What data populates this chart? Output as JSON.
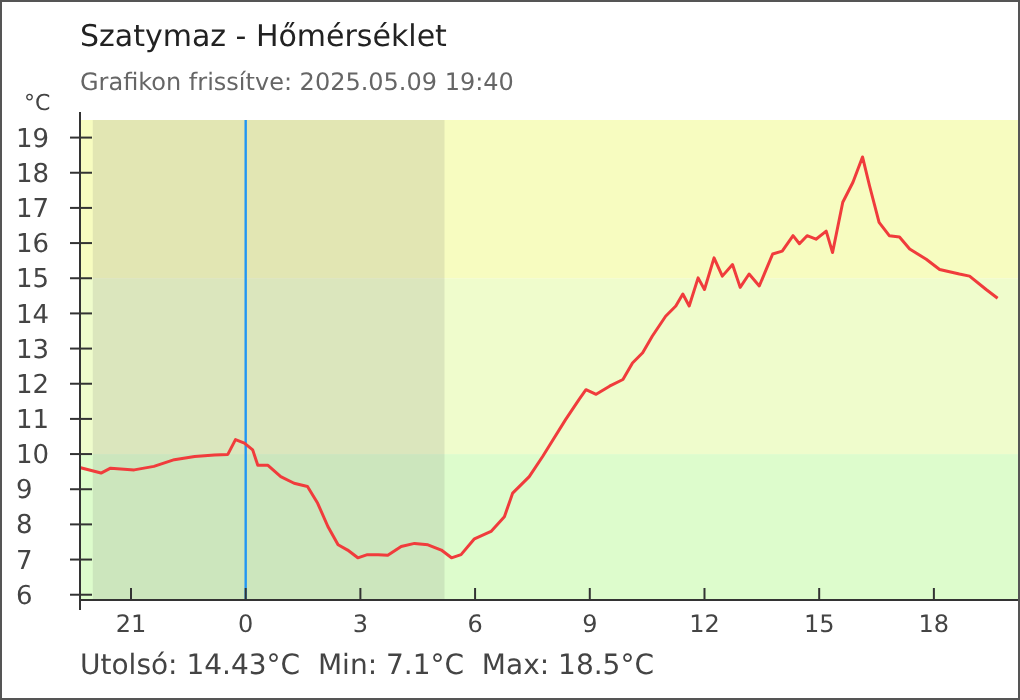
{
  "chart_data": {
    "type": "line",
    "title": "Szatymaz - Hőmérséklet",
    "subtitle": "Grafikon frissítve: 2025.05.09 19:40",
    "ylabel": "°C",
    "annotations": [
      "Utolsó: 14.43°C  Min: 7.1°C  Max: 18.5°C"
    ],
    "xlim": [
      "2025-05-08T19:40",
      "2025-05-09T20:12"
    ],
    "ylim": [
      5.85,
      19.5
    ],
    "xticks": [
      {
        "value": "2025-05-08T21:00",
        "label": "21"
      },
      {
        "value": "2025-05-09T00:00",
        "label": "0"
      },
      {
        "value": "2025-05-09T03:00",
        "label": "3"
      },
      {
        "value": "2025-05-09T06:00",
        "label": "6"
      },
      {
        "value": "2025-05-09T09:00",
        "label": "9"
      },
      {
        "value": "2025-05-09T12:00",
        "label": "12"
      },
      {
        "value": "2025-05-09T15:00",
        "label": "15"
      },
      {
        "value": "2025-05-09T18:00",
        "label": "18"
      }
    ],
    "yticks": [
      6,
      7,
      8,
      9,
      10,
      11,
      12,
      13,
      14,
      15,
      16,
      17,
      18,
      19
    ],
    "grid": false,
    "marker": "none",
    "line_style": "solid",
    "bands": [
      {
        "axis": "y",
        "from": 5.85,
        "to": 10,
        "color": "#ddfccc"
      },
      {
        "axis": "y",
        "from": 10,
        "to": 15,
        "color": "#effccc"
      },
      {
        "axis": "y",
        "from": 15,
        "to": 19.5,
        "color": "#f7fcc0"
      },
      {
        "axis": "x",
        "from": "2025-05-08T20:00",
        "to": "2025-05-09T05:12",
        "color": "#6e6e6e"
      }
    ],
    "ref_lines": [
      {
        "axis": "x",
        "value": "2025-05-09T00:00",
        "color": "#2196f3"
      }
    ],
    "series": [
      {
        "color": "#f03c3c",
        "x": [
          "2025-05-08T19:41",
          "2025-05-08T20:13",
          "2025-05-08T20:28",
          "2025-05-08T21:05",
          "2025-05-08T21:36",
          "2025-05-08T22:08",
          "2025-05-08T22:40",
          "2025-05-08T23:11",
          "2025-05-08T23:32",
          "2025-05-08T23:44",
          "2025-05-08T23:58",
          "2025-05-09T00:11",
          "2025-05-09T00:19",
          "2025-05-09T00:35",
          "2025-05-09T00:55",
          "2025-05-09T01:16",
          "2025-05-09T01:37",
          "2025-05-09T01:53",
          "2025-05-09T02:09",
          "2025-05-09T02:25",
          "2025-05-09T02:40",
          "2025-05-09T02:56",
          "2025-05-09T03:11",
          "2025-05-09T03:28",
          "2025-05-09T03:43",
          "2025-05-09T04:04",
          "2025-05-09T04:25",
          "2025-05-09T04:46",
          "2025-05-09T05:07",
          "2025-05-09T05:23",
          "2025-05-09T05:38",
          "2025-05-09T05:59",
          "2025-05-09T06:25",
          "2025-05-09T06:46",
          "2025-05-09T06:59",
          "2025-05-09T07:25",
          "2025-05-09T07:46",
          "2025-05-09T07:56",
          "2025-05-09T08:22",
          "2025-05-09T08:43",
          "2025-05-09T08:54",
          "2025-05-09T09:10",
          "2025-05-09T09:31",
          "2025-05-09T09:52",
          "2025-05-09T10:07",
          "2025-05-09T10:23",
          "2025-05-09T10:38",
          "2025-05-09T10:59",
          "2025-05-09T11:15",
          "2025-05-09T11:26",
          "2025-05-09T11:36",
          "2025-05-09T11:50",
          "2025-05-09T12:00",
          "2025-05-09T12:15",
          "2025-05-09T12:28",
          "2025-05-09T12:44",
          "2025-05-09T12:56",
          "2025-05-09T13:10",
          "2025-05-09T13:26",
          "2025-05-09T13:47",
          "2025-05-09T14:02",
          "2025-05-09T14:19",
          "2025-05-09T14:29",
          "2025-05-09T14:41",
          "2025-05-09T14:55",
          "2025-05-09T15:11",
          "2025-05-09T15:21",
          "2025-05-09T15:37",
          "2025-05-09T15:53",
          "2025-05-09T16:08",
          "2025-05-09T16:19",
          "2025-05-09T16:34",
          "2025-05-09T16:50",
          "2025-05-09T17:06",
          "2025-05-09T17:22",
          "2025-05-09T17:48",
          "2025-05-09T18:09",
          "2025-05-09T18:40",
          "2025-05-09T18:56",
          "2025-05-09T19:22",
          "2025-05-09T19:40"
        ],
        "values": [
          9.61,
          9.46,
          9.6,
          9.55,
          9.65,
          9.84,
          9.93,
          9.97,
          9.99,
          10.41,
          10.31,
          10.12,
          9.68,
          9.68,
          9.36,
          9.17,
          9.08,
          8.6,
          7.94,
          7.42,
          7.27,
          7.05,
          7.14,
          7.14,
          7.12,
          7.37,
          7.46,
          7.42,
          7.27,
          7.05,
          7.14,
          7.59,
          7.8,
          8.22,
          8.89,
          9.36,
          9.93,
          10.22,
          10.98,
          11.55,
          11.83,
          11.7,
          11.93,
          12.12,
          12.59,
          12.88,
          13.35,
          13.92,
          14.21,
          14.55,
          14.21,
          15.01,
          14.68,
          15.58,
          15.06,
          15.39,
          14.74,
          15.12,
          14.78,
          15.69,
          15.77,
          16.21,
          15.98,
          16.21,
          16.11,
          16.34,
          15.73,
          17.16,
          17.73,
          18.45,
          17.63,
          16.59,
          16.21,
          16.17,
          15.83,
          15.54,
          15.25,
          15.12,
          15.06,
          14.68,
          14.43
        ]
      }
    ]
  }
}
